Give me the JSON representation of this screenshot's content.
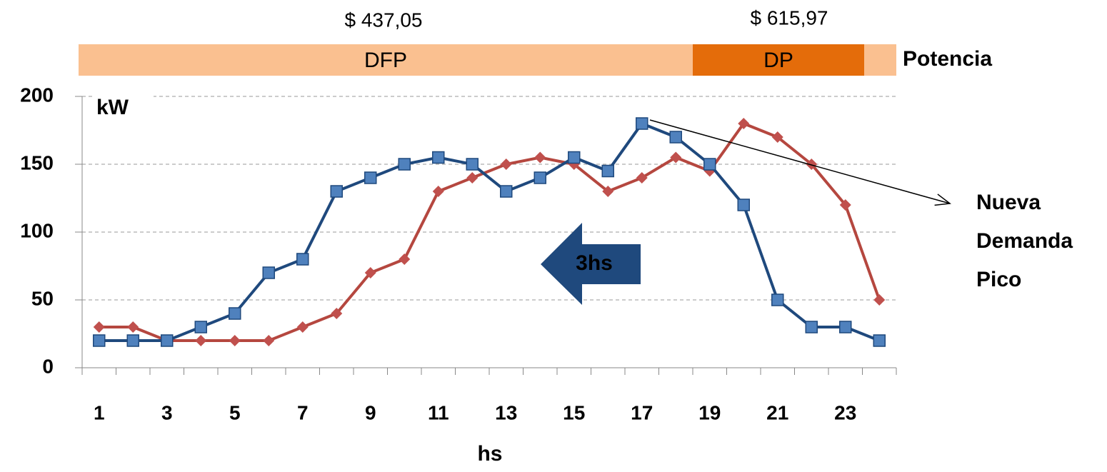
{
  "chart_data": {
    "type": "line",
    "categories": [
      "1",
      null,
      "3",
      null,
      "5",
      null,
      "7",
      null,
      "9",
      null,
      "11",
      null,
      "13",
      null,
      "15",
      null,
      "17",
      null,
      "19",
      null,
      "21",
      null,
      "23",
      null
    ],
    "series": [
      {
        "color": "#b5473f",
        "marker": "diamond",
        "marker_color": "#c0504d",
        "values": [
          30,
          30,
          20,
          20,
          20,
          20,
          30,
          40,
          70,
          80,
          130,
          140,
          150,
          155,
          150,
          130,
          140,
          155,
          145,
          180,
          170,
          150,
          120,
          50
        ]
      },
      {
        "color": "#1f497d",
        "marker": "square",
        "marker_color": "#4f81bd",
        "values": [
          20,
          20,
          20,
          30,
          40,
          70,
          80,
          130,
          140,
          150,
          155,
          150,
          130,
          140,
          155,
          145,
          180,
          170,
          150,
          120,
          50,
          30,
          30,
          20
        ]
      }
    ],
    "ylim": [
      0,
      200
    ],
    "yticks": [
      0,
      50,
      100,
      150,
      200
    ],
    "grid": true,
    "xlabel": "hs",
    "ylabel": "kW",
    "bands": [
      {
        "label": "DFP",
        "price": "$ 437,05",
        "color": "#fac090"
      },
      {
        "label": "DP",
        "price": "$ 615,97",
        "color": "#e46c0a"
      }
    ],
    "band_title": "Potencia",
    "annotations": {
      "shift": "3hs",
      "peak": [
        "Nueva",
        "Demanda",
        "Pico"
      ]
    }
  }
}
